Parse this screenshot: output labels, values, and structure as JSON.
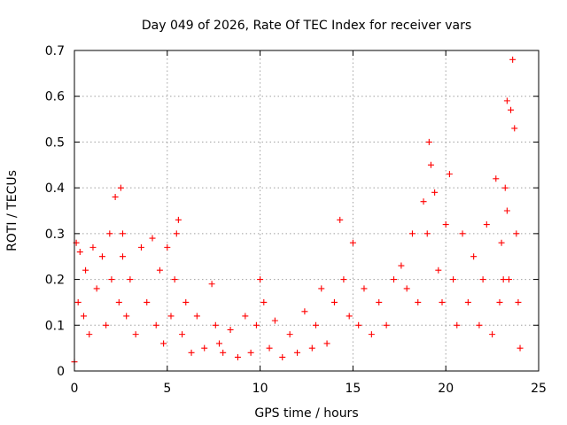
{
  "chart_data": {
    "type": "scatter",
    "title": "Day 049 of 2026, Rate Of TEC Index for receiver vars",
    "xlabel": "GPS time / hours",
    "ylabel": "ROTI / TECUs",
    "xlim": [
      0,
      25
    ],
    "ylim": [
      0,
      0.7
    ],
    "x_ticks": [
      0,
      5,
      10,
      15,
      20,
      25
    ],
    "x_tick_labels": [
      "0",
      "5",
      "10",
      "15",
      "20",
      "25"
    ],
    "y_ticks": [
      0,
      0.1,
      0.2,
      0.3,
      0.4,
      0.5,
      0.6,
      0.7
    ],
    "y_tick_labels": [
      "0",
      "0.1",
      "0.2",
      "0.3",
      "0.4",
      "0.5",
      "0.6",
      "0.7"
    ],
    "grid": true,
    "marker": "plus",
    "marker_color": "#ff0000",
    "series": [
      {
        "name": "ROTI",
        "x": [
          0.0,
          0.1,
          0.2,
          0.3,
          0.5,
          0.6,
          0.8,
          1.0,
          1.2,
          1.5,
          1.7,
          1.9,
          2.0,
          2.2,
          2.4,
          2.5,
          2.6,
          2.6,
          2.8,
          3.0,
          3.3,
          3.6,
          3.9,
          4.2,
          4.4,
          4.6,
          4.8,
          5.0,
          5.2,
          5.4,
          5.5,
          5.6,
          5.8,
          6.0,
          6.3,
          6.6,
          7.0,
          7.4,
          7.6,
          7.8,
          8.0,
          8.4,
          8.8,
          9.2,
          9.5,
          9.8,
          10.0,
          10.2,
          10.5,
          10.8,
          11.2,
          11.6,
          12.0,
          12.4,
          12.8,
          13.0,
          13.3,
          13.6,
          14.0,
          14.3,
          14.5,
          14.8,
          15.0,
          15.3,
          15.6,
          16.0,
          16.4,
          16.8,
          17.2,
          17.6,
          17.9,
          18.2,
          18.5,
          18.8,
          19.0,
          19.1,
          19.2,
          19.4,
          19.6,
          19.8,
          20.0,
          20.2,
          20.4,
          20.6,
          20.9,
          21.2,
          21.5,
          21.8,
          22.0,
          22.2,
          22.5,
          22.7,
          22.9,
          23.0,
          23.1,
          23.2,
          23.3,
          23.3,
          23.4,
          23.5,
          23.6,
          23.7,
          23.8,
          23.9,
          24.0
        ],
        "y": [
          0.02,
          0.28,
          0.15,
          0.26,
          0.12,
          0.22,
          0.08,
          0.27,
          0.18,
          0.25,
          0.1,
          0.3,
          0.2,
          0.38,
          0.15,
          0.4,
          0.3,
          0.25,
          0.12,
          0.2,
          0.08,
          0.27,
          0.15,
          0.29,
          0.1,
          0.22,
          0.06,
          0.27,
          0.12,
          0.2,
          0.3,
          0.33,
          0.08,
          0.15,
          0.04,
          0.12,
          0.05,
          0.19,
          0.1,
          0.06,
          0.04,
          0.09,
          0.03,
          0.12,
          0.04,
          0.1,
          0.2,
          0.15,
          0.05,
          0.11,
          0.03,
          0.08,
          0.04,
          0.13,
          0.05,
          0.1,
          0.18,
          0.06,
          0.15,
          0.33,
          0.2,
          0.12,
          0.28,
          0.1,
          0.18,
          0.08,
          0.15,
          0.1,
          0.2,
          0.23,
          0.18,
          0.3,
          0.15,
          0.37,
          0.3,
          0.5,
          0.45,
          0.39,
          0.22,
          0.15,
          0.32,
          0.43,
          0.2,
          0.1,
          0.3,
          0.15,
          0.25,
          0.1,
          0.2,
          0.32,
          0.08,
          0.42,
          0.15,
          0.28,
          0.2,
          0.4,
          0.59,
          0.35,
          0.2,
          0.57,
          0.68,
          0.53,
          0.3,
          0.15,
          0.05
        ]
      }
    ]
  }
}
